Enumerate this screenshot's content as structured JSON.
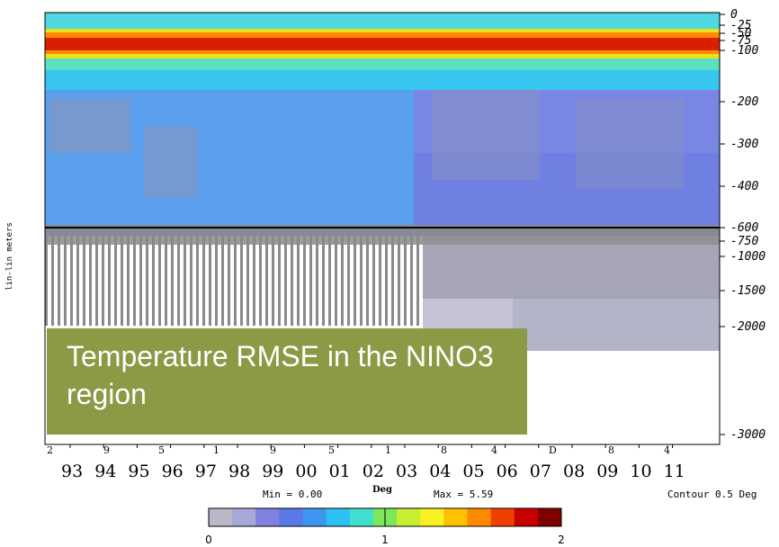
{
  "chart_data": {
    "type": "heatmap",
    "title": "Temperature RMSE in the NINO3 region",
    "ylabel": "lin-lin meters",
    "units": "Deg",
    "min_text": "Min = 0.00",
    "max_text": "Max = 5.59",
    "contour_text": "Contour 0.5 Deg",
    "y_ticks": [
      "0",
      "-25",
      "-50",
      "-75",
      "-100",
      "-200",
      "-300",
      "-400",
      "-600",
      "-750",
      "-1000",
      "-1500",
      "-2000",
      "-3000"
    ],
    "x_ticks": [
      "93",
      "94",
      "95",
      "96",
      "97",
      "98",
      "99",
      "00",
      "01",
      "02",
      "03",
      "04",
      "05",
      "06",
      "07",
      "08",
      "09",
      "10",
      "11"
    ],
    "x_month_labels": [
      "2",
      "9",
      "5",
      "1",
      "9",
      "5",
      "1",
      "8",
      "4",
      "D",
      "8",
      "4"
    ],
    "colorbar": {
      "min": 0,
      "max": 2,
      "ticks": [
        "0",
        "1",
        "2"
      ],
      "colors": [
        "#b8b8c8",
        "#a8a8d8",
        "#8080e0",
        "#5a78e6",
        "#3c96f0",
        "#2cc0f4",
        "#40e0d0",
        "#7ee65a",
        "#c8ee30",
        "#f8f020",
        "#ffc000",
        "#ff8a00",
        "#f04000",
        "#c80000",
        "#800000"
      ]
    }
  }
}
